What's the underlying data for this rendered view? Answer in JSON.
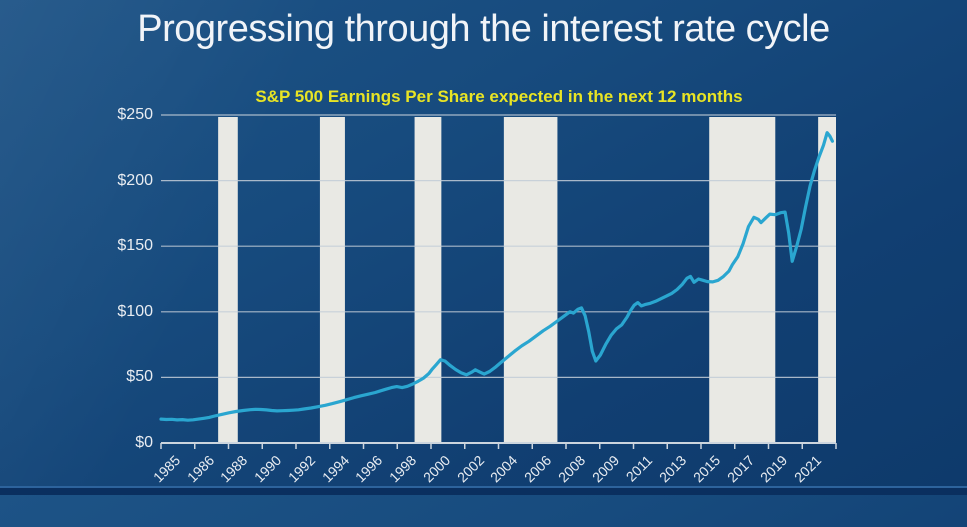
{
  "slide": {
    "title": "Progressing through the interest rate cycle"
  },
  "chart_data": {
    "type": "line",
    "title": "S&P 500 Earnings Per Share expected in the next 12 months",
    "title_color": "#e8e424",
    "xlabel": "",
    "ylabel": "",
    "x_range": [
      1985.0,
      2022.8
    ],
    "ylim": [
      0,
      250
    ],
    "grid": true,
    "legend_position": "none",
    "y_tick_values": [
      0,
      50,
      100,
      150,
      200,
      250
    ],
    "y_tick_labels": [
      "$0",
      "$50",
      "$100",
      "$150",
      "$200",
      "$250"
    ],
    "x_tick_labels": [
      "1985",
      "1986",
      "1988",
      "1990",
      "1992",
      "1994",
      "1996",
      "1998",
      "2000",
      "2002",
      "2004",
      "2006",
      "2008",
      "2009",
      "2011",
      "2013",
      "2015",
      "2017",
      "2019",
      "2021"
    ],
    "shaded_bands": {
      "name": "rate-hiking-cycle-band",
      "color": "#e9e9e4",
      "ranges_years": [
        [
          1988.2,
          1989.3
        ],
        [
          1993.9,
          1995.3
        ],
        [
          1999.2,
          2000.7
        ],
        [
          2004.2,
          2007.2
        ],
        [
          2015.7,
          2019.4
        ],
        [
          2021.8,
          2022.8
        ]
      ]
    },
    "series": [
      {
        "name": "S&P 500 forward 12-month EPS ($)",
        "color": "#2aa6d0",
        "points": [
          [
            1985.0,
            18.2
          ],
          [
            1985.3,
            17.9
          ],
          [
            1985.6,
            18.1
          ],
          [
            1985.9,
            17.6
          ],
          [
            1986.2,
            17.8
          ],
          [
            1986.5,
            17.4
          ],
          [
            1986.8,
            17.7
          ],
          [
            1987.1,
            18.2
          ],
          [
            1987.4,
            18.8
          ],
          [
            1987.7,
            19.5
          ],
          [
            1988.0,
            20.6
          ],
          [
            1988.4,
            21.8
          ],
          [
            1988.8,
            23.0
          ],
          [
            1989.2,
            24.0
          ],
          [
            1989.6,
            24.8
          ],
          [
            1990.0,
            25.4
          ],
          [
            1990.3,
            25.7
          ],
          [
            1990.6,
            25.5
          ],
          [
            1990.9,
            25.2
          ],
          [
            1991.2,
            24.8
          ],
          [
            1991.5,
            24.5
          ],
          [
            1991.8,
            24.6
          ],
          [
            1992.1,
            24.8
          ],
          [
            1992.4,
            25.0
          ],
          [
            1992.7,
            25.3
          ],
          [
            1993.0,
            25.9
          ],
          [
            1993.4,
            26.7
          ],
          [
            1993.8,
            27.7
          ],
          [
            1994.2,
            28.7
          ],
          [
            1994.6,
            30.0
          ],
          [
            1995.0,
            31.5
          ],
          [
            1995.4,
            33.0
          ],
          [
            1995.8,
            34.6
          ],
          [
            1996.2,
            36.0
          ],
          [
            1996.6,
            37.2
          ],
          [
            1997.0,
            38.5
          ],
          [
            1997.3,
            39.8
          ],
          [
            1997.6,
            41.0
          ],
          [
            1997.9,
            42.2
          ],
          [
            1998.2,
            43.0
          ],
          [
            1998.5,
            42.2
          ],
          [
            1998.8,
            43.2
          ],
          [
            1999.1,
            45.0
          ],
          [
            1999.4,
            47.0
          ],
          [
            1999.7,
            49.5
          ],
          [
            2000.0,
            53.0
          ],
          [
            2000.2,
            56.5
          ],
          [
            2000.4,
            59.5
          ],
          [
            2000.65,
            63.5
          ],
          [
            2000.9,
            62.5
          ],
          [
            2001.2,
            59.0
          ],
          [
            2001.5,
            56.0
          ],
          [
            2001.8,
            53.5
          ],
          [
            2002.1,
            52.0
          ],
          [
            2002.4,
            54.0
          ],
          [
            2002.6,
            55.8
          ],
          [
            2002.9,
            53.8
          ],
          [
            2003.1,
            52.5
          ],
          [
            2003.4,
            54.5
          ],
          [
            2003.7,
            57.5
          ],
          [
            2004.0,
            61.0
          ],
          [
            2004.4,
            65.5
          ],
          [
            2004.8,
            70.0
          ],
          [
            2005.2,
            74.0
          ],
          [
            2005.6,
            77.5
          ],
          [
            2006.0,
            81.5
          ],
          [
            2006.4,
            85.5
          ],
          [
            2006.8,
            89.0
          ],
          [
            2007.2,
            93.0
          ],
          [
            2007.6,
            97.0
          ],
          [
            2007.9,
            100.0
          ],
          [
            2008.1,
            99.0
          ],
          [
            2008.35,
            102.0
          ],
          [
            2008.55,
            103.0
          ],
          [
            2008.75,
            97.0
          ],
          [
            2008.95,
            85.0
          ],
          [
            2009.15,
            70.0
          ],
          [
            2009.35,
            62.5
          ],
          [
            2009.6,
            67.0
          ],
          [
            2009.9,
            75.0
          ],
          [
            2010.2,
            82.0
          ],
          [
            2010.5,
            87.0
          ],
          [
            2010.8,
            90.0
          ],
          [
            2011.1,
            96.0
          ],
          [
            2011.3,
            101.0
          ],
          [
            2011.5,
            105.0
          ],
          [
            2011.7,
            107.0
          ],
          [
            2011.9,
            104.5
          ],
          [
            2012.1,
            105.5
          ],
          [
            2012.4,
            106.5
          ],
          [
            2012.7,
            108.0
          ],
          [
            2013.0,
            110.0
          ],
          [
            2013.3,
            112.0
          ],
          [
            2013.6,
            114.0
          ],
          [
            2013.9,
            117.0
          ],
          [
            2014.2,
            121.0
          ],
          [
            2014.45,
            125.5
          ],
          [
            2014.65,
            127.0
          ],
          [
            2014.85,
            122.5
          ],
          [
            2015.1,
            125.0
          ],
          [
            2015.35,
            124.0
          ],
          [
            2015.6,
            123.0
          ],
          [
            2015.9,
            122.8
          ],
          [
            2016.2,
            124.0
          ],
          [
            2016.5,
            127.0
          ],
          [
            2016.8,
            131.0
          ],
          [
            2017.0,
            136.0
          ],
          [
            2017.3,
            142.0
          ],
          [
            2017.6,
            152.0
          ],
          [
            2017.9,
            165.0
          ],
          [
            2018.2,
            172.0
          ],
          [
            2018.45,
            170.5
          ],
          [
            2018.6,
            168.0
          ],
          [
            2018.9,
            172.0
          ],
          [
            2019.1,
            174.5
          ],
          [
            2019.4,
            174.0
          ],
          [
            2019.7,
            175.5
          ],
          [
            2019.95,
            176.0
          ],
          [
            2020.15,
            160.0
          ],
          [
            2020.35,
            138.5
          ],
          [
            2020.6,
            150.0
          ],
          [
            2020.85,
            163.0
          ],
          [
            2021.1,
            180.0
          ],
          [
            2021.35,
            196.0
          ],
          [
            2021.6,
            208.0
          ],
          [
            2021.85,
            218.0
          ],
          [
            2022.1,
            227.0
          ],
          [
            2022.3,
            236.5
          ],
          [
            2022.45,
            234.0
          ],
          [
            2022.6,
            230.0
          ]
        ]
      }
    ],
    "colors": {
      "grid": "#c3cdd8",
      "axis": "#ccd5de",
      "tick_text": "#e9edf2"
    }
  }
}
